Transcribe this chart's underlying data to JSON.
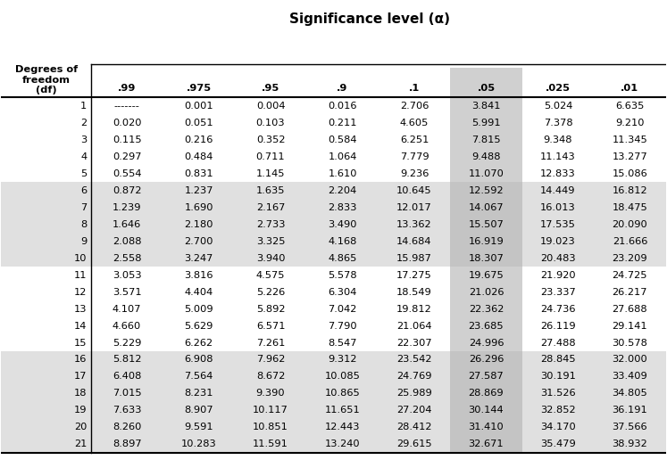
{
  "title": "Significance level (α)",
  "col_header_label": "Degrees of\nfreedom\n(df)",
  "col_headers": [
    ".99",
    ".975",
    ".95",
    ".9",
    ".1",
    ".05",
    ".025",
    ".01"
  ],
  "rows": [
    [
      1,
      "-------",
      "0.001",
      "0.004",
      "0.016",
      "2.706",
      "3.841",
      "5.024",
      "6.635"
    ],
    [
      2,
      "0.020",
      "0.051",
      "0.103",
      "0.211",
      "4.605",
      "5.991",
      "7.378",
      "9.210"
    ],
    [
      3,
      "0.115",
      "0.216",
      "0.352",
      "0.584",
      "6.251",
      "7.815",
      "9.348",
      "11.345"
    ],
    [
      4,
      "0.297",
      "0.484",
      "0.711",
      "1.064",
      "7.779",
      "9.488",
      "11.143",
      "13.277"
    ],
    [
      5,
      "0.554",
      "0.831",
      "1.145",
      "1.610",
      "9.236",
      "11.070",
      "12.833",
      "15.086"
    ],
    [
      6,
      "0.872",
      "1.237",
      "1.635",
      "2.204",
      "10.645",
      "12.592",
      "14.449",
      "16.812"
    ],
    [
      7,
      "1.239",
      "1.690",
      "2.167",
      "2.833",
      "12.017",
      "14.067",
      "16.013",
      "18.475"
    ],
    [
      8,
      "1.646",
      "2.180",
      "2.733",
      "3.490",
      "13.362",
      "15.507",
      "17.535",
      "20.090"
    ],
    [
      9,
      "2.088",
      "2.700",
      "3.325",
      "4.168",
      "14.684",
      "16.919",
      "19.023",
      "21.666"
    ],
    [
      10,
      "2.558",
      "3.247",
      "3.940",
      "4.865",
      "15.987",
      "18.307",
      "20.483",
      "23.209"
    ],
    [
      11,
      "3.053",
      "3.816",
      "4.575",
      "5.578",
      "17.275",
      "19.675",
      "21.920",
      "24.725"
    ],
    [
      12,
      "3.571",
      "4.404",
      "5.226",
      "6.304",
      "18.549",
      "21.026",
      "23.337",
      "26.217"
    ],
    [
      13,
      "4.107",
      "5.009",
      "5.892",
      "7.042",
      "19.812",
      "22.362",
      "24.736",
      "27.688"
    ],
    [
      14,
      "4.660",
      "5.629",
      "6.571",
      "7.790",
      "21.064",
      "23.685",
      "26.119",
      "29.141"
    ],
    [
      15,
      "5.229",
      "6.262",
      "7.261",
      "8.547",
      "22.307",
      "24.996",
      "27.488",
      "30.578"
    ],
    [
      16,
      "5.812",
      "6.908",
      "7.962",
      "9.312",
      "23.542",
      "26.296",
      "28.845",
      "32.000"
    ],
    [
      17,
      "6.408",
      "7.564",
      "8.672",
      "10.085",
      "24.769",
      "27.587",
      "30.191",
      "33.409"
    ],
    [
      18,
      "7.015",
      "8.231",
      "9.390",
      "10.865",
      "25.989",
      "28.869",
      "31.526",
      "34.805"
    ],
    [
      19,
      "7.633",
      "8.907",
      "10.117",
      "11.651",
      "27.204",
      "30.144",
      "32.852",
      "36.191"
    ],
    [
      20,
      "8.260",
      "9.591",
      "10.851",
      "12.443",
      "28.412",
      "31.410",
      "34.170",
      "37.566"
    ],
    [
      21,
      "8.897",
      "10.283",
      "11.591",
      "13.240",
      "29.615",
      "32.671",
      "35.479",
      "38.932"
    ]
  ],
  "shaded_row_groups": [
    [
      6,
      7,
      8,
      9,
      10
    ],
    [
      16,
      17,
      18,
      19,
      20,
      21
    ]
  ],
  "highlight_col_index": 5,
  "bg_color": "#ffffff",
  "shaded_row_color": "#e0e0e0",
  "highlight_col_color": "#d0d0d0",
  "highlight_shaded_color": "#c4c4c4",
  "header_line_color": "#000000",
  "font_size": 8.2,
  "title_font_size": 11
}
